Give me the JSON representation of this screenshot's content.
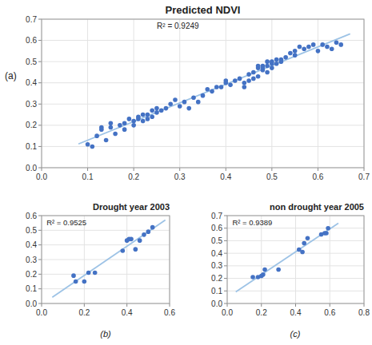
{
  "chart_data": [
    {
      "type": "scatter",
      "title": "Predicted NDVI",
      "annotations": [
        "(a)",
        "R² = 0.9249"
      ],
      "series": [
        {
          "type": "scatter",
          "color": "#4472C4",
          "marker": "circle",
          "x": [
            0.1,
            0.11,
            0.12,
            0.13,
            0.13,
            0.14,
            0.15,
            0.15,
            0.16,
            0.17,
            0.18,
            0.18,
            0.19,
            0.2,
            0.2,
            0.21,
            0.21,
            0.22,
            0.22,
            0.23,
            0.23,
            0.24,
            0.24,
            0.25,
            0.25,
            0.26,
            0.27,
            0.28,
            0.29,
            0.3,
            0.31,
            0.32,
            0.33,
            0.34,
            0.35,
            0.36,
            0.37,
            0.38,
            0.39,
            0.4,
            0.4,
            0.41,
            0.42,
            0.43,
            0.44,
            0.44,
            0.45,
            0.45,
            0.46,
            0.46,
            0.47,
            0.47,
            0.47,
            0.48,
            0.48,
            0.48,
            0.49,
            0.49,
            0.49,
            0.5,
            0.5,
            0.5,
            0.51,
            0.51,
            0.52,
            0.52,
            0.53,
            0.54,
            0.55,
            0.55,
            0.56,
            0.57,
            0.58,
            0.59,
            0.6,
            0.61,
            0.62,
            0.63,
            0.64,
            0.65
          ],
          "values": [
            0.11,
            0.1,
            0.15,
            0.18,
            0.19,
            0.13,
            0.19,
            0.21,
            0.16,
            0.2,
            0.18,
            0.21,
            0.23,
            0.22,
            0.2,
            0.24,
            0.23,
            0.22,
            0.25,
            0.23,
            0.25,
            0.27,
            0.24,
            0.26,
            0.28,
            0.27,
            0.28,
            0.3,
            0.32,
            0.29,
            0.31,
            0.28,
            0.33,
            0.31,
            0.34,
            0.37,
            0.36,
            0.38,
            0.38,
            0.4,
            0.41,
            0.39,
            0.41,
            0.42,
            0.38,
            0.4,
            0.41,
            0.44,
            0.42,
            0.45,
            0.43,
            0.47,
            0.48,
            0.46,
            0.48,
            0.47,
            0.45,
            0.48,
            0.5,
            0.49,
            0.5,
            0.47,
            0.51,
            0.49,
            0.51,
            0.5,
            0.52,
            0.54,
            0.55,
            0.53,
            0.57,
            0.56,
            0.57,
            0.58,
            0.55,
            0.58,
            0.57,
            0.56,
            0.59,
            0.58
          ]
        },
        {
          "type": "line",
          "color": "#9DC3E6",
          "x": [
            0.08,
            0.67
          ],
          "values": [
            0.112,
            0.6306
          ]
        }
      ],
      "xlim": [
        0,
        0.7
      ],
      "ylim": [
        0,
        0.7
      ],
      "xticks": [
        {
          "value": 0,
          "label": "0.0"
        },
        0.1,
        0.2,
        0.3,
        0.4,
        0.5,
        0.6,
        0.7
      ],
      "yticks": [
        {
          "value": 0,
          "label": "0.0"
        },
        0.1,
        0.2,
        0.3,
        0.4,
        0.5,
        0.6,
        0.7
      ],
      "grid": true
    },
    {
      "type": "scatter",
      "title": "Drought year 2003",
      "annotations": [
        "(b)",
        "R² = 0.9525"
      ],
      "series": [
        {
          "type": "scatter",
          "color": "#4472C4",
          "marker": "circle",
          "x": [
            0.15,
            0.16,
            0.2,
            0.22,
            0.25,
            0.38,
            0.4,
            0.41,
            0.42,
            0.44,
            0.46,
            0.48,
            0.5,
            0.52
          ],
          "values": [
            0.19,
            0.15,
            0.15,
            0.21,
            0.21,
            0.36,
            0.43,
            0.44,
            0.44,
            0.37,
            0.43,
            0.47,
            0.49,
            0.52
          ]
        },
        {
          "type": "line",
          "color": "#9DC3E6",
          "x": [
            0.05,
            0.58
          ],
          "values": [
            0.0418,
            0.57
          ]
        }
      ],
      "xlim": [
        0,
        0.6
      ],
      "ylim": [
        0,
        0.6
      ],
      "xticks": [
        {
          "value": 0,
          "label": "0.0"
        },
        0.2,
        0.4,
        0.6
      ],
      "yticks": [
        {
          "value": 0,
          "label": "0.0"
        },
        0.1,
        0.2,
        0.3,
        0.4,
        0.5,
        0.6
      ],
      "grid": true
    },
    {
      "type": "scatter",
      "title": "non drought year 2005",
      "annotations": [
        "(c)",
        "R² = 0.9389"
      ],
      "series": [
        {
          "type": "scatter",
          "color": "#4472C4",
          "marker": "circle",
          "x": [
            0.15,
            0.18,
            0.2,
            0.21,
            0.22,
            0.3,
            0.42,
            0.44,
            0.45,
            0.47,
            0.55,
            0.57,
            0.58,
            0.59
          ],
          "values": [
            0.21,
            0.21,
            0.22,
            0.23,
            0.27,
            0.27,
            0.43,
            0.41,
            0.48,
            0.52,
            0.55,
            0.56,
            0.56,
            0.6
          ]
        },
        {
          "type": "line",
          "color": "#9DC3E6",
          "x": [
            0.05,
            0.65
          ],
          "values": [
            0.0927,
            0.6399
          ]
        }
      ],
      "xlim": [
        0,
        0.8
      ],
      "ylim": [
        0,
        0.7
      ],
      "xticks": [
        {
          "value": 0,
          "label": "0.0"
        },
        0.2,
        0.4,
        0.6,
        0.8
      ],
      "yticks": [
        {
          "value": 0,
          "label": "0.0"
        },
        0.1,
        0.2,
        0.3,
        0.4,
        0.5,
        0.6,
        0.7
      ],
      "grid": true
    }
  ]
}
